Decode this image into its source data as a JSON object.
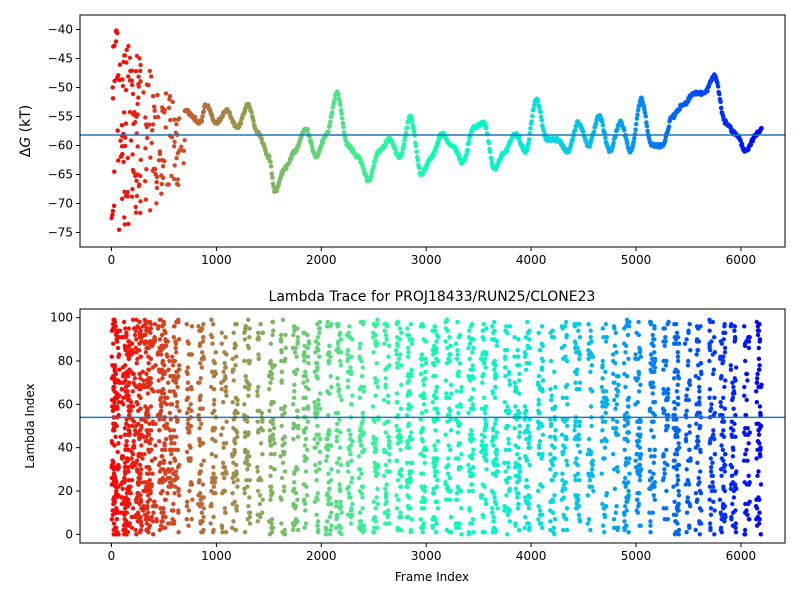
{
  "charts": [
    {
      "type": "scatter",
      "title": "",
      "xlabel": "",
      "ylabel_prefix": "Δ",
      "ylabel_var": "G",
      "ylabel_suffix": " (kT)",
      "xlim": [
        -300,
        6420
      ],
      "ylim": [
        -77.5,
        -37.5
      ],
      "xticks": [
        0,
        1000,
        2000,
        3000,
        4000,
        5000,
        6000
      ],
      "yticks": [
        -75,
        -70,
        -65,
        -60,
        -55,
        -50,
        -45,
        -40
      ],
      "hline": -58.2,
      "hline_color": "#1f77b4",
      "colormap": "rainbow_r",
      "grid": false,
      "legend": "none",
      "trace_keypoints": [
        [
          700,
          -54
        ],
        [
          850,
          -56
        ],
        [
          900,
          -53
        ],
        [
          1000,
          -56
        ],
        [
          1100,
          -54
        ],
        [
          1200,
          -57
        ],
        [
          1300,
          -53
        ],
        [
          1400,
          -58
        ],
        [
          1500,
          -62
        ],
        [
          1560,
          -68
        ],
        [
          1650,
          -64
        ],
        [
          1750,
          -61
        ],
        [
          1850,
          -57
        ],
        [
          1950,
          -62
        ],
        [
          2050,
          -58
        ],
        [
          2150,
          -51
        ],
        [
          2250,
          -60
        ],
        [
          2350,
          -62
        ],
        [
          2450,
          -66
        ],
        [
          2550,
          -61
        ],
        [
          2650,
          -59
        ],
        [
          2750,
          -62
        ],
        [
          2850,
          -55
        ],
        [
          2950,
          -65
        ],
        [
          3050,
          -62
        ],
        [
          3150,
          -58
        ],
        [
          3250,
          -60
        ],
        [
          3350,
          -63
        ],
        [
          3450,
          -57
        ],
        [
          3550,
          -56
        ],
        [
          3650,
          -64
        ],
        [
          3750,
          -61
        ],
        [
          3850,
          -58
        ],
        [
          3950,
          -61
        ],
        [
          4050,
          -52
        ],
        [
          4150,
          -59
        ],
        [
          4250,
          -59
        ],
        [
          4350,
          -61
        ],
        [
          4450,
          -56
        ],
        [
          4550,
          -60
        ],
        [
          4650,
          -55
        ],
        [
          4750,
          -61
        ],
        [
          4850,
          -56
        ],
        [
          4950,
          -61
        ],
        [
          5050,
          -52
        ],
        [
          5150,
          -60
        ],
        [
          5250,
          -60
        ],
        [
          5350,
          -55
        ],
        [
          5450,
          -53
        ],
        [
          5550,
          -51
        ],
        [
          5650,
          -51
        ],
        [
          5750,
          -48
        ],
        [
          5850,
          -56
        ],
        [
          5950,
          -58
        ],
        [
          6050,
          -61
        ],
        [
          6150,
          -58
        ],
        [
          6200,
          -57
        ]
      ],
      "trace_frames": [
        700,
        6200
      ],
      "trace_jitter": 0.6,
      "early_band": {
        "x_range": [
          0,
          700
        ],
        "y_range": [
          -75,
          -38
        ],
        "count": 180
      }
    },
    {
      "type": "scatter",
      "title": "Lambda Trace for PROJ18433/RUN25/CLONE23",
      "xlabel": "Frame Index",
      "ylabel": "Lambda Index",
      "xlim": [
        -300,
        6420
      ],
      "ylim": [
        -4,
        104
      ],
      "xticks": [
        0,
        1000,
        2000,
        3000,
        4000,
        5000,
        6000
      ],
      "yticks": [
        0,
        20,
        40,
        60,
        80,
        100
      ],
      "hline": 54,
      "hline_color": "#1f77b4",
      "colormap": "rainbow_r",
      "grid": false,
      "legend": "none",
      "frames": [
        0,
        6200
      ],
      "lambda_range": [
        0,
        99
      ],
      "point_count": 3400
    }
  ]
}
